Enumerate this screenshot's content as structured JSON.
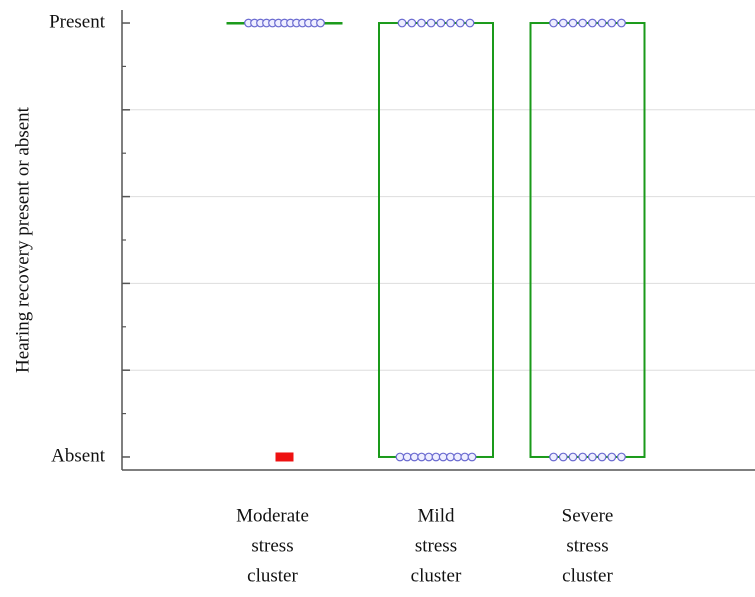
{
  "chart_data": {
    "type": "box",
    "y_label": "Hearing recovery present or absent",
    "categories": [
      [
        "Moderate",
        "stress",
        "cluster"
      ],
      [
        "Mild",
        "stress",
        "cluster"
      ],
      [
        "Severe",
        "stress",
        "cluster"
      ]
    ],
    "boxes": [
      {
        "q1": 1,
        "q3": 1,
        "points": [
          1,
          1,
          1,
          1,
          1,
          1,
          1,
          1,
          1,
          1,
          1,
          1,
          1
        ],
        "outliers": [
          0
        ]
      },
      {
        "q1": 0,
        "q3": 1,
        "points": [
          1,
          1,
          1,
          1,
          1,
          1,
          1,
          1,
          0,
          0,
          0,
          0,
          0,
          0,
          0,
          0,
          0,
          0,
          0
        ]
      },
      {
        "q1": 0,
        "q3": 1,
        "points": [
          1,
          1,
          1,
          1,
          1,
          1,
          1,
          1,
          0,
          0,
          0,
          0,
          0,
          0,
          0,
          0
        ]
      }
    ],
    "box_color": "#1a9a1a",
    "point_color": "#6a6ad0",
    "outlier_color": "#ee1111",
    "ylim": [
      -0.03,
      1.03
    ],
    "yticks": [
      {
        "value": 0,
        "label": "Absent"
      },
      {
        "value": 1,
        "label": "Present"
      }
    ],
    "ymajor_ticks": [
      0.2,
      0.4,
      0.6,
      0.8
    ],
    "yminor_ticks": [
      0.1,
      0.3,
      0.5,
      0.7,
      0.9
    ],
    "grid": true
  }
}
